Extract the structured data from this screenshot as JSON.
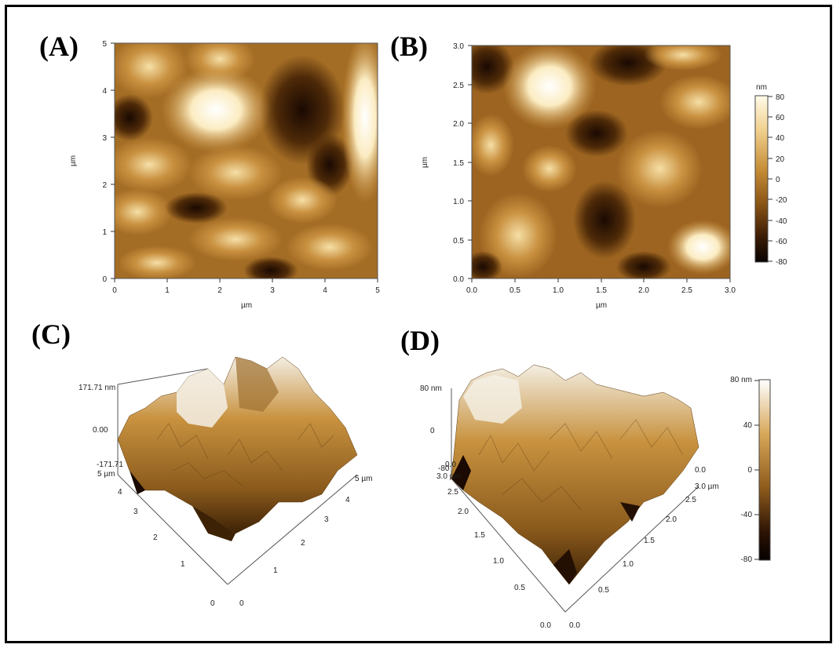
{
  "panels": {
    "A": {
      "label": "(A)",
      "x_ticks": [
        "0",
        "1",
        "2",
        "3",
        "4",
        "5"
      ],
      "y_ticks": [
        "0",
        "1",
        "2",
        "3",
        "4",
        "5"
      ],
      "xlabel": "µm",
      "ylabel": "µm"
    },
    "B": {
      "label": "(B)",
      "x_ticks": [
        "0.0",
        "0.5",
        "1.0",
        "1.5",
        "2.0",
        "2.5",
        "3.0"
      ],
      "y_ticks": [
        "0.0",
        "0.5",
        "1.0",
        "1.5",
        "2.0",
        "2.5",
        "3.0"
      ],
      "xlabel": "µm",
      "ylabel": "µm",
      "colorbar": {
        "unit": "nm",
        "ticks": [
          "80",
          "60",
          "40",
          "20",
          "0",
          "-20",
          "-40",
          "-60",
          "-80"
        ],
        "colors": [
          "#fffbe8",
          "#f3d79a",
          "#d9a64e",
          "#b77a26",
          "#8a5416",
          "#5c3209",
          "#2e1504",
          "#0e0501"
        ]
      }
    },
    "C": {
      "label": "(C)",
      "z_ticks": [
        "171.71 nm",
        "0.00",
        "-171.71"
      ],
      "x_ticks": [
        "0",
        "1",
        "2",
        "3",
        "4",
        "5 µm"
      ],
      "y_ticks": [
        "0",
        "1",
        "2",
        "3",
        "4",
        "5 µm"
      ]
    },
    "D": {
      "label": "(D)",
      "z_ticks": [
        "80 nm",
        "0",
        "-80"
      ],
      "x_ticks": [
        "0.0",
        "0.5",
        "1.0",
        "1.5",
        "2.0",
        "2.5",
        "3.0 µm"
      ],
      "y_ticks": [
        "0.0",
        "0.5",
        "1.0",
        "1.5",
        "2.0",
        "2.5",
        "3.0 µm"
      ],
      "corner_ticks": [
        "0.0",
        "0.0"
      ],
      "colorbar": {
        "ticks": [
          "80 nm",
          "40",
          "0",
          "-40",
          "-80"
        ]
      }
    }
  }
}
